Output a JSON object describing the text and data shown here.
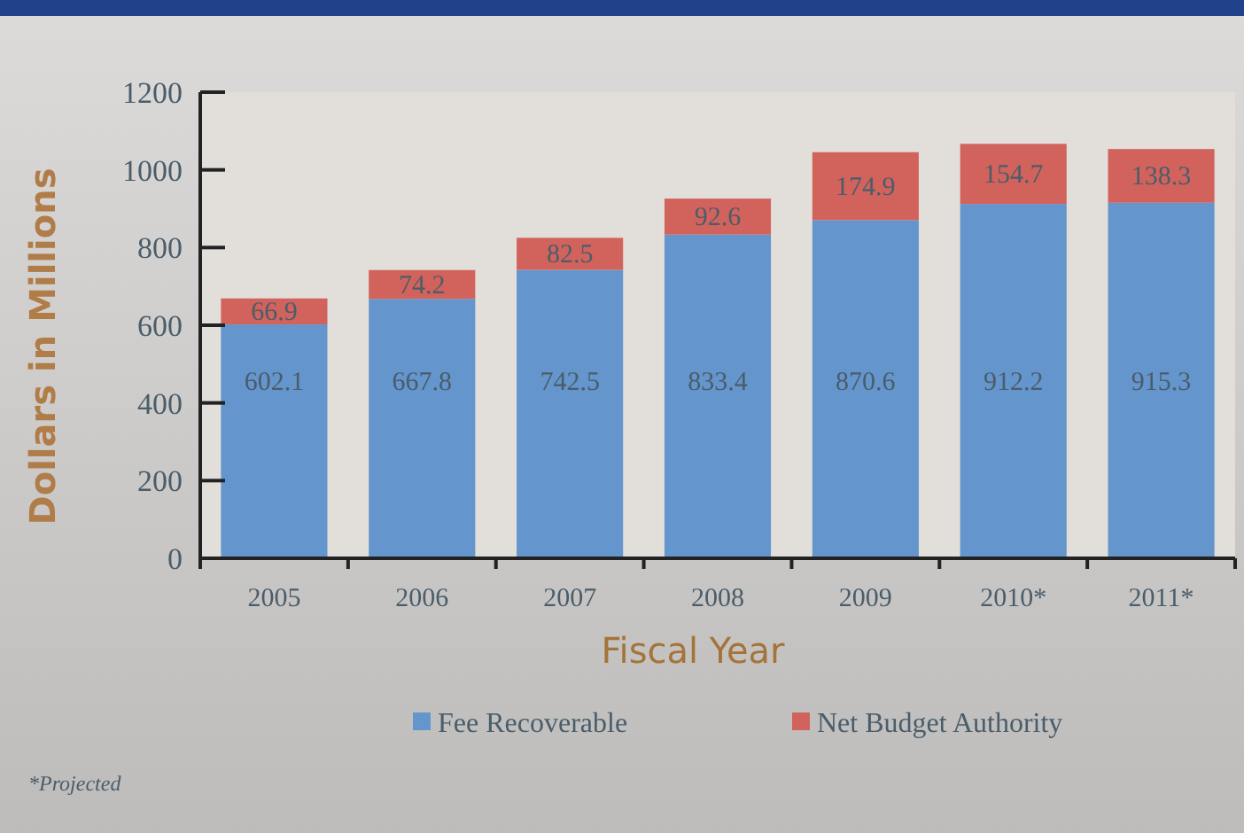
{
  "chart_data": {
    "type": "bar",
    "stacked": true,
    "xlabel": "Fiscal Year",
    "ylabel": "Dollars in Millions",
    "categories": [
      "2005",
      "2006",
      "2007",
      "2008",
      "2009",
      "2010*",
      "2011*"
    ],
    "series": [
      {
        "name": "Fee Recoverable",
        "color": "#6495cc",
        "values": [
          602.1,
          667.8,
          742.5,
          833.4,
          870.6,
          912.2,
          915.3
        ]
      },
      {
        "name": "Net Budget Authority",
        "color": "#d2635c",
        "values": [
          66.9,
          74.2,
          82.5,
          92.6,
          174.9,
          154.7,
          138.3
        ]
      }
    ],
    "data_labels": true,
    "ylim": [
      0,
      1200
    ],
    "yticks": [
      0,
      200,
      400,
      600,
      800,
      1000,
      1200
    ],
    "grid": false,
    "legend": "bottom",
    "annotations": [
      "*Projected"
    ]
  }
}
